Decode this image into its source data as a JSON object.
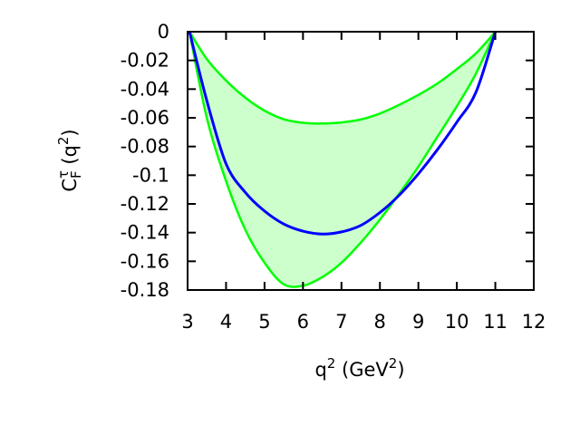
{
  "chart_data": {
    "type": "area",
    "xlabel": {
      "base": "q",
      "sup": "2",
      "rest": " (GeV",
      "sup2": "2",
      "end": ")"
    },
    "ylabel": {
      "base": "C",
      "sup": "τ",
      "sub": "F",
      "rest": " (q",
      "sup2": "2",
      "end": ")"
    },
    "xlim": [
      3,
      12
    ],
    "ylim": [
      -0.18,
      0
    ],
    "xticks": [
      3,
      4,
      5,
      6,
      7,
      8,
      9,
      10,
      11,
      12
    ],
    "xtick_labels": [
      "3",
      "4",
      "5",
      "6",
      "7",
      "8",
      "9",
      "10",
      "11",
      "12"
    ],
    "yticks": [
      0,
      -0.02,
      -0.04,
      -0.06,
      -0.08,
      -0.1,
      -0.12,
      -0.14,
      -0.16,
      -0.18
    ],
    "ytick_labels": [
      "0",
      "-0.02",
      "-0.04",
      "-0.06",
      "-0.08",
      "-0.1",
      "-0.12",
      "-0.14",
      "-0.16",
      "-0.18"
    ],
    "grid": false,
    "colors": {
      "central": "#0000ff",
      "bounds": "#00ff00",
      "band_fill": "#ccffcc",
      "axis": "#000000"
    },
    "series": [
      {
        "role": "upper_bound",
        "x": [
          3.05,
          3.5,
          4,
          4.5,
          5,
          5.5,
          6,
          6.5,
          7,
          7.5,
          8,
          8.5,
          9,
          9.5,
          10,
          10.5,
          11
        ],
        "y": [
          0,
          -0.019,
          -0.034,
          -0.046,
          -0.055,
          -0.061,
          -0.0635,
          -0.064,
          -0.0632,
          -0.0612,
          -0.057,
          -0.051,
          -0.044,
          -0.036,
          -0.026,
          -0.015,
          0
        ]
      },
      {
        "role": "central",
        "x": [
          3.05,
          3.5,
          4,
          4.5,
          5,
          5.5,
          6,
          6.5,
          7,
          7.5,
          8,
          8.5,
          9,
          9.5,
          10,
          10.5,
          11
        ],
        "y": [
          0,
          -0.048,
          -0.092,
          -0.112,
          -0.125,
          -0.134,
          -0.139,
          -0.141,
          -0.1395,
          -0.135,
          -0.126,
          -0.114,
          -0.099,
          -0.082,
          -0.063,
          -0.042,
          0
        ]
      },
      {
        "role": "lower_bound",
        "x": [
          3.05,
          3.5,
          4,
          4.5,
          5,
          5.5,
          6,
          6.5,
          7,
          7.5,
          8,
          8.5,
          9,
          9.5,
          10,
          10.5,
          11
        ],
        "y": [
          0,
          -0.06,
          -0.104,
          -0.138,
          -0.161,
          -0.176,
          -0.177,
          -0.171,
          -0.161,
          -0.147,
          -0.131,
          -0.113,
          -0.094,
          -0.073,
          -0.052,
          -0.029,
          0
        ]
      }
    ]
  }
}
